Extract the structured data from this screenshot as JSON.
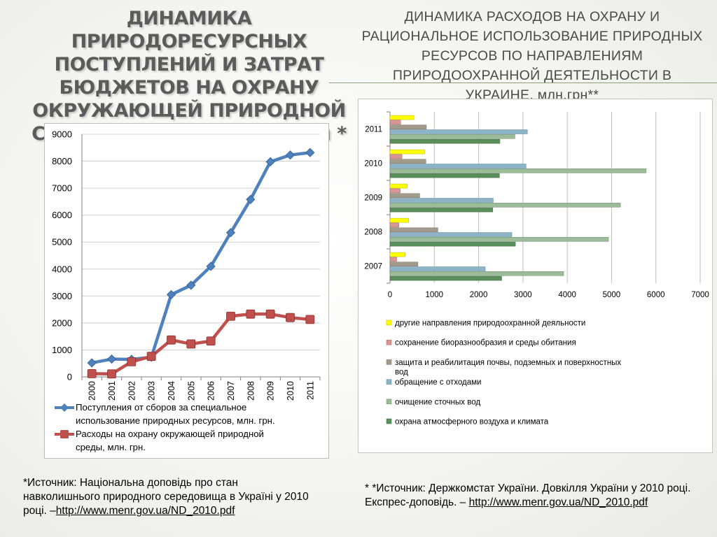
{
  "left_title": "ДИНАМИКА  ПРИРОДОРЕСУРСНЫХ ПОСТУПЛЕНИЙ И ЗАТРАТ БЮДЖЕТОВ НА ОХРАНУ ОКРУЖАЮЩЕЙ ПРИРОДНОЙ СРЕДЫ В УКРАИНЕ, млн.грн *",
  "right_title": "ДИНАМИКА РАСХОДОВ НА ОХРАНУ И РАЦИОНАЛЬНОЕ ИСПОЛЬЗОВАНИЕ ПРИРОДНЫХ РЕСУРСОВ ПО НАПРАВЛЕНИЯМ ПРИРОДООХРАННОЙ ДЕЯТЕЛЬНОСТИ В УКРАИНЕ, млн.грн**",
  "source_left": {
    "text": "*Источник: Національна доповідь про стан навколишнього природного середовища в Україні у 2010 році. –",
    "link": "http://www.menr.gov.ua/ND_2010.pdf"
  },
  "source_right": {
    "text": "* *Источник: Держкомстат України. Довкілля України у 2010 році. Експрес-доповідь. –",
    "link": "http://www.menr.gov.ua/ND_2010.pdf"
  },
  "colors": {
    "series_blue": "#4f81bd",
    "series_red": "#c0504d",
    "bar_yellow": "#ffff00",
    "bar_pink": "#d99694",
    "bar_gray": "#a29b8c",
    "bar_blue": "#8db3c7",
    "bar_sage": "#9bbb99",
    "bar_green": "#5a8f5c"
  },
  "chart_data": [
    {
      "type": "line",
      "x": [
        "2000",
        "2001",
        "2002",
        "2003",
        "2004",
        "2005",
        "2006",
        "2007",
        "2008",
        "2009",
        "2010",
        "2011"
      ],
      "ylim": [
        0,
        9000
      ],
      "yticks": [
        "0",
        "1000",
        "2000",
        "3000",
        "4000",
        "5000",
        "6000",
        "7000",
        "8000",
        "9000"
      ],
      "grid": true,
      "legend_position": "bottom",
      "series": [
        {
          "name": "Поступления от сборов за специальное использование природных ресурсов, млн. грн.",
          "values": [
            520,
            660,
            650,
            730,
            3050,
            3400,
            4100,
            5350,
            6580,
            7980,
            8230,
            8320
          ]
        },
        {
          "name": "Расходы на охрану окружающей природной среды, млн. грн.",
          "values": [
            120,
            110,
            560,
            760,
            1370,
            1220,
            1330,
            2250,
            2330,
            2330,
            2200,
            2130
          ]
        }
      ]
    },
    {
      "type": "bar",
      "orientation": "horizontal",
      "categories": [
        "2007",
        "2008",
        "2009",
        "2010",
        "2011"
      ],
      "xlim": [
        0,
        7000
      ],
      "xticks": [
        "0",
        "1000",
        "2000",
        "3000",
        "4000",
        "5000",
        "6000",
        "7000"
      ],
      "grid": true,
      "legend_position": "bottom",
      "series": [
        {
          "name": "другие направления природоохранной деяльности",
          "values": [
            340,
            420,
            390,
            780,
            540
          ]
        },
        {
          "name": "сохранение биоразнообразия и среды обитания",
          "values": [
            150,
            200,
            230,
            270,
            240
          ]
        },
        {
          "name": "защита и  реабилитация почвы,   подземных и поверхностных вод",
          "values": [
            630,
            1080,
            670,
            810,
            820
          ]
        },
        {
          "name": "обращение с отходами",
          "values": [
            2150,
            2750,
            2330,
            3070,
            3100
          ]
        },
        {
          "name": "очищение сточных вод",
          "values": [
            3920,
            4930,
            5200,
            5780,
            2820
          ]
        },
        {
          "name": "охрана атмосферного воздуха и климата",
          "values": [
            2520,
            2830,
            2320,
            2470,
            2480
          ]
        }
      ]
    }
  ]
}
